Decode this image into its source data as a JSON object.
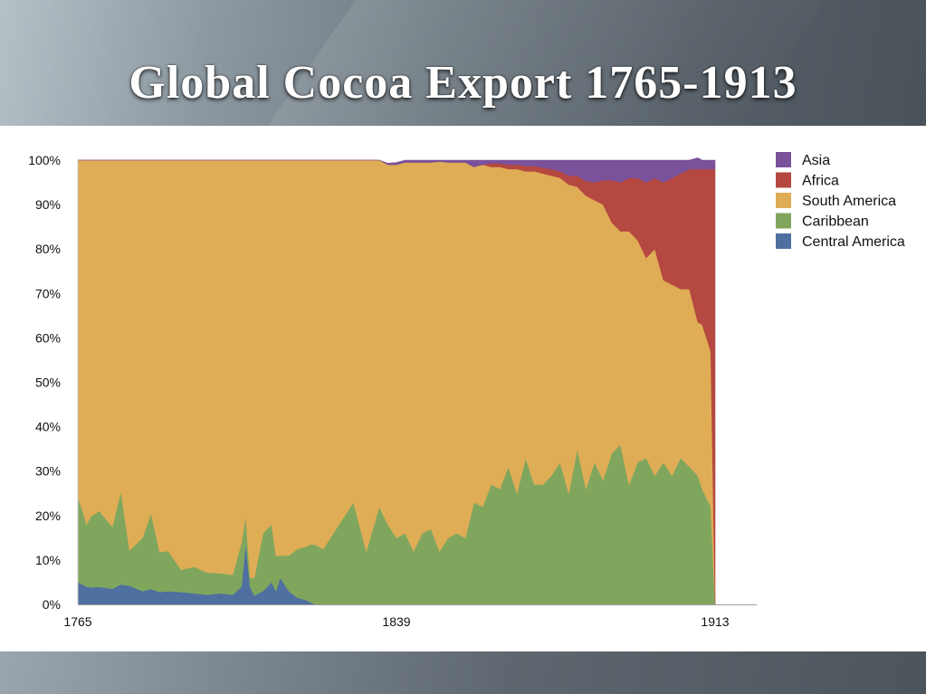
{
  "slide": {
    "title": "Global Cocoa Export 1765-1913"
  },
  "chart_data": {
    "type": "area",
    "stacked": "percent",
    "x_range": [
      1765,
      1913
    ],
    "x_ticks": [
      "1765",
      "1839",
      "1913"
    ],
    "y_ticks": [
      "0%",
      "10%",
      "20%",
      "30%",
      "40%",
      "50%",
      "60%",
      "70%",
      "80%",
      "90%",
      "100%"
    ],
    "ylim": [
      0,
      100
    ],
    "grid": false,
    "legend_position": "right",
    "x": [
      1765,
      1766,
      1767,
      1768,
      1770,
      1773,
      1775,
      1777,
      1780,
      1782,
      1784,
      1786,
      1789,
      1792,
      1795,
      1798,
      1801,
      1803,
      1804,
      1805,
      1806,
      1808,
      1810,
      1811,
      1812,
      1814,
      1816,
      1818,
      1819,
      1820,
      1822,
      1825,
      1829,
      1832,
      1835,
      1837,
      1839,
      1841,
      1843,
      1845,
      1847,
      1849,
      1851,
      1853,
      1855,
      1857,
      1859,
      1861,
      1863,
      1865,
      1867,
      1869,
      1871,
      1873,
      1875,
      1877,
      1879,
      1881,
      1883,
      1885,
      1887,
      1889,
      1891,
      1893,
      1895,
      1897,
      1899,
      1901,
      1903,
      1905,
      1907,
      1909,
      1910,
      1911,
      1912,
      1913
    ],
    "series": [
      {
        "name": "Central America",
        "color": "#4e6fa0",
        "values": [
          5,
          4.5,
          4,
          3.8,
          4,
          3.5,
          4.5,
          4.2,
          3,
          3.5,
          2.8,
          3,
          2.8,
          2.5,
          2.2,
          2.5,
          2.2,
          4,
          14,
          4,
          2,
          3,
          5,
          3,
          6,
          3,
          1.5,
          1,
          0.5,
          0,
          0,
          0,
          0,
          0,
          0,
          0,
          0,
          0,
          0,
          0,
          0,
          0,
          0,
          0,
          0,
          0,
          0,
          0,
          0,
          0,
          0,
          0,
          0,
          0,
          0,
          0,
          0,
          0,
          0,
          0,
          0,
          0,
          0,
          0,
          0,
          0,
          0,
          0,
          0,
          0,
          0,
          0,
          0,
          0,
          0,
          0
        ]
      },
      {
        "name": "Caribbean",
        "color": "#80a65e",
        "values": [
          19,
          17,
          14,
          16,
          17,
          14,
          21,
          8,
          12,
          17,
          9,
          9,
          5,
          6,
          5,
          4.5,
          4.5,
          10,
          6,
          2,
          4,
          13,
          13,
          8,
          5,
          8,
          11,
          12,
          13,
          13.5,
          12.5,
          17,
          23,
          12,
          22,
          18,
          15,
          16,
          12,
          16,
          17,
          12,
          15,
          16,
          15,
          23,
          22,
          27,
          26,
          31,
          25,
          33,
          27,
          27,
          29,
          32,
          25,
          35,
          26,
          32,
          28,
          34,
          36,
          27,
          32,
          33,
          29,
          32,
          29,
          33,
          31,
          29,
          26,
          24,
          22,
          0
        ]
      },
      {
        "name": "South America",
        "color": "#dfad56",
        "values": [
          76,
          78.5,
          82,
          80.2,
          79,
          82.5,
          74.5,
          87.8,
          85,
          79.5,
          88.2,
          88,
          92.2,
          91.5,
          92.8,
          93,
          93.3,
          86,
          80,
          94,
          94,
          84,
          82,
          89,
          89,
          89,
          87.5,
          87,
          86.5,
          86.5,
          87.5,
          83,
          77,
          88,
          78,
          81,
          84,
          83.5,
          87.5,
          83.5,
          82.5,
          87.7,
          84.5,
          83.5,
          84.5,
          75.5,
          77,
          71.5,
          72.5,
          67,
          73,
          64.5,
          70.5,
          70,
          67.5,
          64,
          69.5,
          59,
          66,
          59,
          62,
          52,
          48,
          57,
          50,
          45,
          51,
          41,
          43,
          38,
          40,
          34.5,
          37,
          36,
          35,
          0
        ]
      },
      {
        "name": "Africa",
        "color": "#b54840",
        "values": [
          0,
          0,
          0,
          0,
          0,
          0,
          0,
          0,
          0,
          0,
          0,
          0,
          0,
          0,
          0,
          0,
          0,
          0,
          0,
          0,
          0,
          0,
          0,
          0,
          0,
          0,
          0,
          0,
          0,
          0,
          0,
          0,
          0,
          0,
          0,
          0,
          0,
          0,
          0,
          0,
          0,
          0,
          0,
          0,
          0,
          0,
          0,
          0.8,
          0.8,
          1,
          1,
          1.2,
          1.2,
          1.3,
          1.5,
          1.5,
          2,
          2.5,
          3.3,
          4,
          5.5,
          9.5,
          11,
          12,
          14,
          17,
          16,
          22,
          24,
          26,
          27,
          34.5,
          35,
          38,
          41,
          98
        ]
      },
      {
        "name": "Asia",
        "color": "#7a519b",
        "values": [
          0,
          0,
          0,
          0,
          0,
          0,
          0,
          0,
          0,
          0,
          0,
          0,
          0,
          0,
          0,
          0,
          0,
          0,
          0,
          0,
          0,
          0,
          0,
          0,
          0,
          0,
          0,
          0,
          0,
          0,
          0,
          0,
          0,
          0,
          0,
          0.3,
          0.5,
          0.5,
          0.5,
          0.5,
          0.5,
          0.3,
          0.5,
          0.5,
          0.5,
          1.5,
          1,
          0.7,
          0.7,
          1,
          1,
          1.3,
          1.3,
          1.7,
          2,
          2.5,
          3.5,
          3.5,
          4.7,
          5,
          4.5,
          4.5,
          5,
          4,
          4,
          5,
          4,
          5,
          4,
          3,
          2,
          2.5,
          2,
          2,
          2,
          2
        ]
      }
    ]
  }
}
